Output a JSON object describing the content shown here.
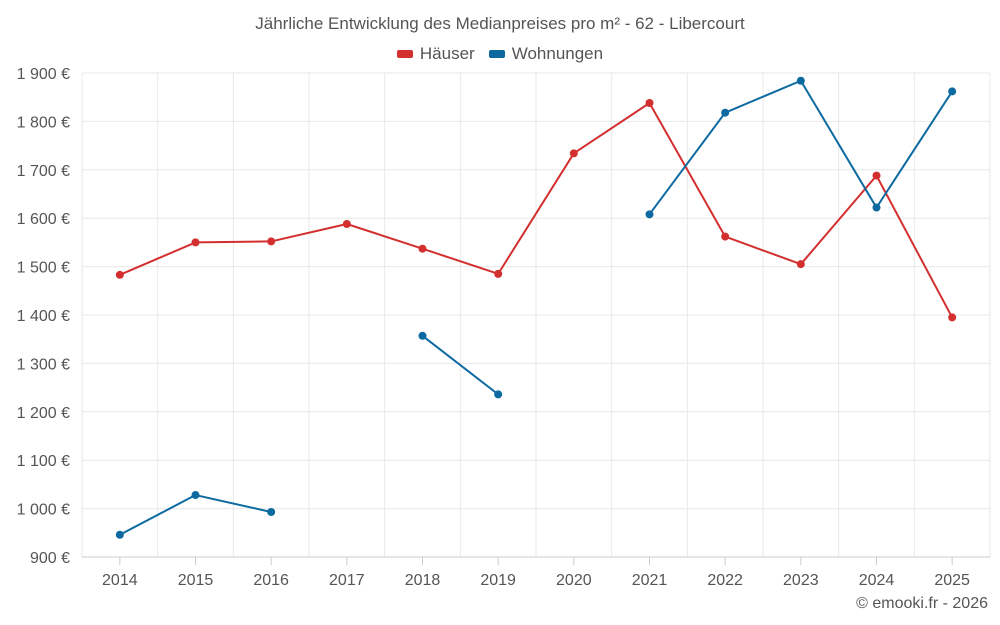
{
  "chart_data": {
    "type": "line",
    "title": "Jährliche Entwicklung des Medianpreises pro m² - 62 - Libercourt",
    "categories": [
      "2014",
      "2015",
      "2016",
      "2017",
      "2018",
      "2019",
      "2020",
      "2021",
      "2022",
      "2023",
      "2024",
      "2025"
    ],
    "series": [
      {
        "name": "Häuser",
        "color": "#d32f2f",
        "values": [
          1483,
          1550,
          1552,
          1588,
          1537,
          1485,
          1734,
          1838,
          1562,
          1505,
          1688,
          1395
        ]
      },
      {
        "name": "Wohnungen",
        "color": "#0d6aa0",
        "values": [
          946,
          1028,
          993,
          null,
          1357,
          1236,
          null,
          1608,
          1818,
          1884,
          1622,
          1862
        ]
      }
    ],
    "y_ticks": [
      "900 €",
      "1 000 €",
      "1 100 €",
      "1 200 €",
      "1 300 €",
      "1 400 €",
      "1 500 €",
      "1 600 €",
      "1 700 €",
      "1 800 €",
      "1 900 €"
    ],
    "ylim": [
      900,
      1900
    ],
    "xlabel": "",
    "ylabel": "",
    "grid": true,
    "legend_position": "top-center"
  },
  "credits": "© emooki.fr - 2026"
}
